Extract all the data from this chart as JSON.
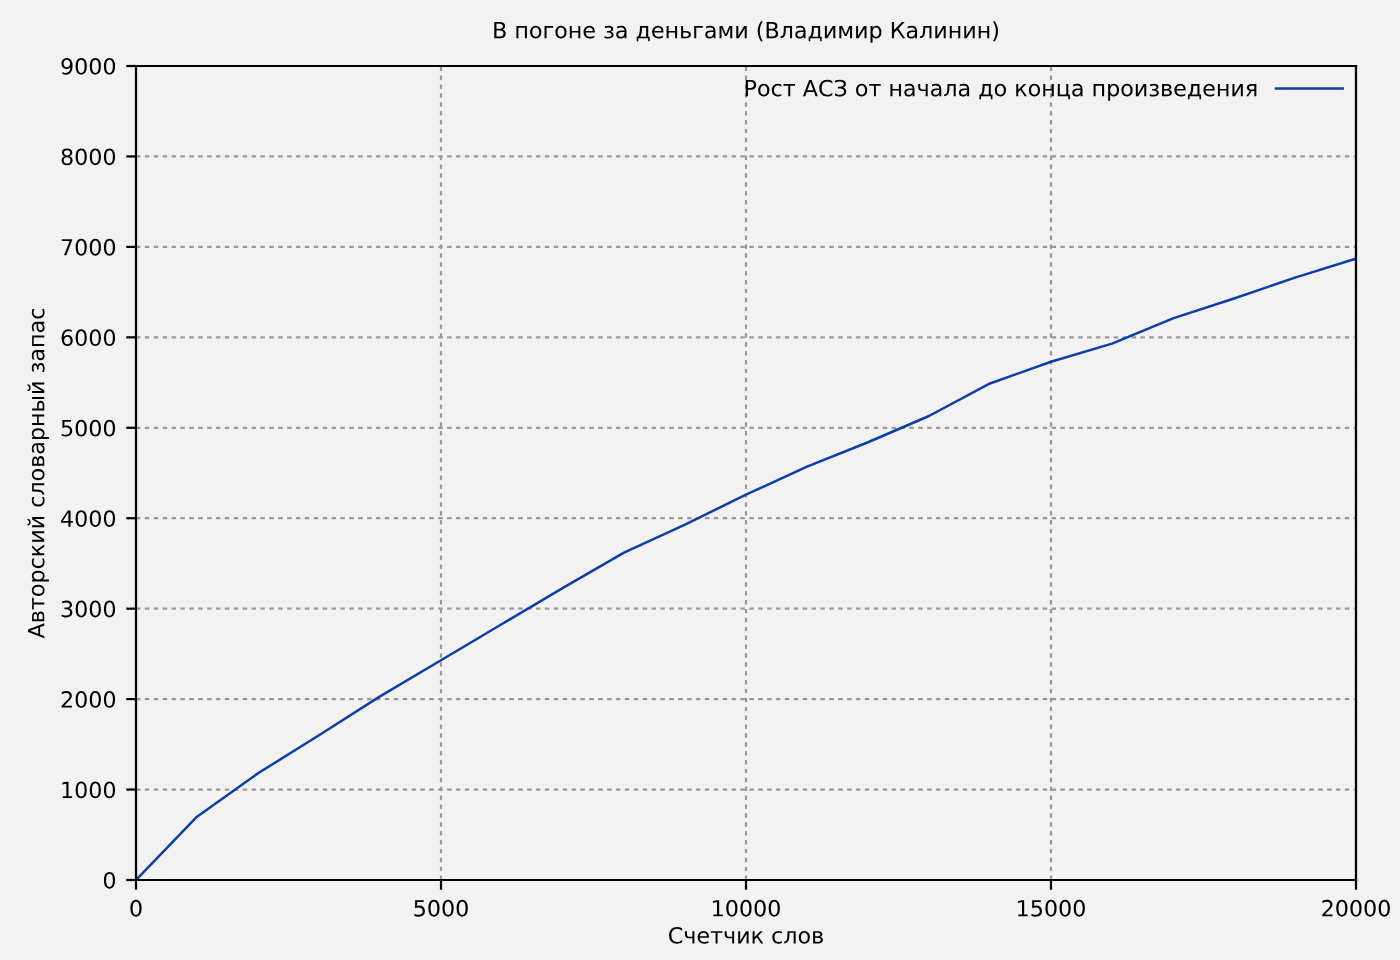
{
  "chart_data": {
    "type": "line",
    "title": "В погоне за деньгами (Владимир Калинин)",
    "xlabel": "Счетчик слов",
    "ylabel": "Авторский словарный запас",
    "x": [
      0,
      1000,
      2000,
      3000,
      4000,
      5000,
      6000,
      7000,
      8000,
      9000,
      10000,
      11000,
      12000,
      13000,
      14000,
      15000,
      16000,
      17000,
      18000,
      19000,
      20000
    ],
    "series": [
      {
        "name": "Рост АСЗ от начала до конца произведения",
        "color": "#0a3fa8",
        "values": [
          0,
          700,
          1180,
          1600,
          2030,
          2430,
          2830,
          3230,
          3620,
          3930,
          4260,
          4570,
          4840,
          5130,
          5490,
          5730,
          5930,
          6210,
          6430,
          6660,
          6870
        ]
      }
    ],
    "xlim": [
      0,
      20000
    ],
    "ylim": [
      0,
      9000
    ],
    "xticks": [
      0,
      5000,
      10000,
      15000,
      20000
    ],
    "yticks": [
      0,
      1000,
      2000,
      3000,
      4000,
      5000,
      6000,
      7000,
      8000,
      9000
    ],
    "grid": true,
    "legend": "top right",
    "marker": "none",
    "line_style": "solid"
  }
}
